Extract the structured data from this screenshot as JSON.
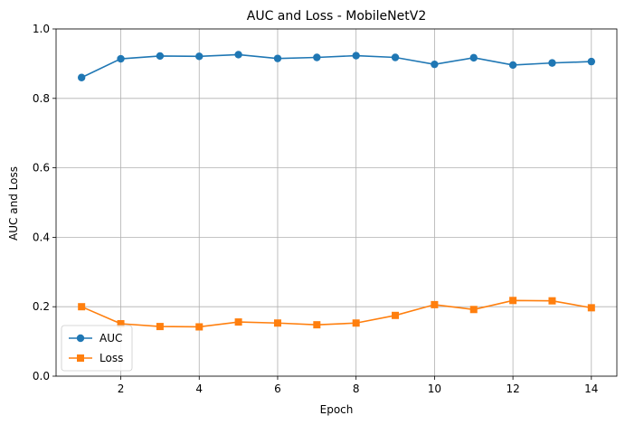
{
  "chart_data": {
    "type": "line",
    "title": "AUC and Loss - MobileNetV2",
    "xlabel": "Epoch",
    "ylabel": "AUC and Loss",
    "x": [
      1,
      2,
      3,
      4,
      5,
      6,
      7,
      8,
      9,
      10,
      11,
      12,
      13,
      14
    ],
    "xlim": [
      0.35,
      14.65
    ],
    "ylim": [
      0,
      1.0
    ],
    "xticks": [
      2,
      4,
      6,
      8,
      10,
      12,
      14
    ],
    "yticks": [
      0.0,
      0.2,
      0.4,
      0.6,
      0.8,
      1.0
    ],
    "xtick_labels": [
      "2",
      "4",
      "6",
      "8",
      "10",
      "12",
      "14"
    ],
    "ytick_labels": [
      "0.0",
      "0.2",
      "0.4",
      "0.6",
      "0.8",
      "1.0"
    ],
    "grid": true,
    "legend_position": "lower-left",
    "series": [
      {
        "name": "AUC",
        "marker": "circle",
        "color": "#1f77b4",
        "values": [
          0.86,
          0.914,
          0.922,
          0.921,
          0.926,
          0.915,
          0.918,
          0.923,
          0.918,
          0.898,
          0.917,
          0.896,
          0.902,
          0.906
        ]
      },
      {
        "name": "Loss",
        "marker": "square",
        "color": "#ff7f0e",
        "values": [
          0.2,
          0.151,
          0.143,
          0.142,
          0.156,
          0.153,
          0.148,
          0.153,
          0.175,
          0.206,
          0.192,
          0.218,
          0.217,
          0.197
        ]
      }
    ]
  }
}
